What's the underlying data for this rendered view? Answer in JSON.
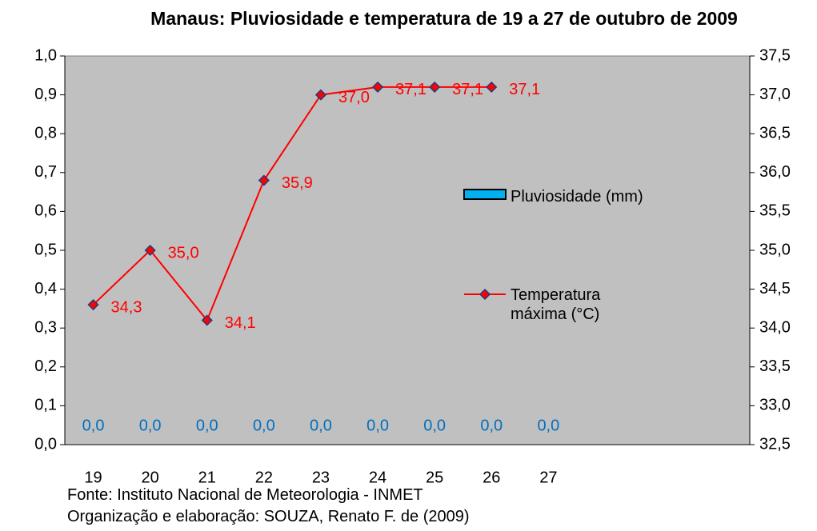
{
  "chart_data": {
    "type": "bar-line",
    "title": "Manaus: Pluviosidade e temperatura de 19 a 27 de outubro de 2009",
    "categories": [
      "19",
      "20",
      "21",
      "22",
      "23",
      "24",
      "25",
      "26",
      "27"
    ],
    "series": [
      {
        "name": "Pluviosidade (mm)",
        "type": "bar",
        "color": "#00b0f0",
        "label_color": "#0070c0",
        "axis": "y",
        "values": [
          0,
          0,
          0,
          0,
          0,
          0,
          0,
          0,
          0
        ],
        "value_labels": [
          "0,0",
          "0,0",
          "0,0",
          "0,0",
          "0,0",
          "0,0",
          "0,0",
          "0,0",
          "0,0"
        ]
      },
      {
        "name": "Temperatura máxima (°C)",
        "type": "line",
        "color": "#ff0000",
        "axis": "y2",
        "values": [
          34.3,
          35.0,
          34.1,
          35.9,
          37.0,
          37.1,
          37.1,
          37.1,
          null
        ],
        "value_labels": [
          "34,3",
          "35,0",
          "34,1",
          "35,9",
          "37,0",
          "37,1",
          "37,1",
          "37,1",
          null
        ]
      }
    ],
    "ylim": [
      0,
      1
    ],
    "yticks": [
      {
        "value": 0,
        "label": "0,0"
      },
      {
        "value": 0.1,
        "label": "0,1"
      },
      {
        "value": 0.2,
        "label": "0,2"
      },
      {
        "value": 0.3,
        "label": "0,3"
      },
      {
        "value": 0.4,
        "label": "0,4"
      },
      {
        "value": 0.5,
        "label": "0,5"
      },
      {
        "value": 0.6,
        "label": "0,6"
      },
      {
        "value": 0.7,
        "label": "0,7"
      },
      {
        "value": 0.8,
        "label": "0,8"
      },
      {
        "value": 0.9,
        "label": "0,9"
      },
      {
        "value": 1,
        "label": "1,0"
      }
    ],
    "y2lim": [
      32.5,
      37.5
    ],
    "y2ticks": [
      {
        "value": 32.5,
        "label": "32,5"
      },
      {
        "value": 33,
        "label": "33,0"
      },
      {
        "value": 33.5,
        "label": "33,5"
      },
      {
        "value": 34,
        "label": "34,0"
      },
      {
        "value": 34.5,
        "label": "34,5"
      },
      {
        "value": 35,
        "label": "35,0"
      },
      {
        "value": 35.5,
        "label": "35,5"
      },
      {
        "value": 36,
        "label": "36,0"
      },
      {
        "value": 36.5,
        "label": "36,5"
      },
      {
        "value": 37,
        "label": "37,0"
      },
      {
        "value": 37.5,
        "label": "37,5"
      }
    ],
    "grid": false,
    "plot_background": "#c0c0c0",
    "source": "Fonte: Instituto Nacional de Meteorologia - INMET",
    "credit": "Organização e elaboração: SOUZA, Renato F. de (2009)"
  }
}
